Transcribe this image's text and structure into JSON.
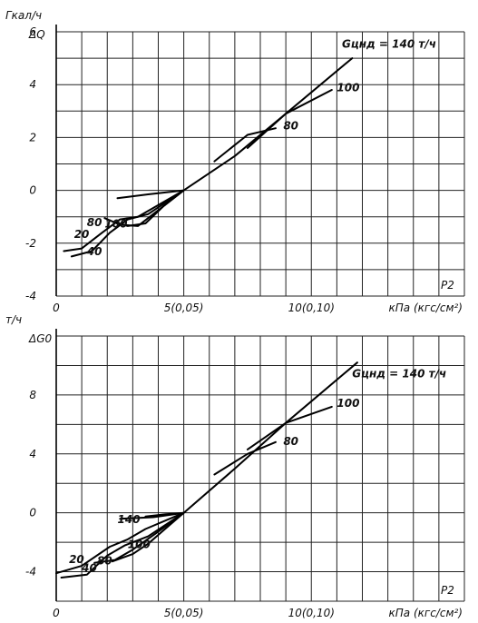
{
  "chart_data": [
    {
      "type": "line",
      "y_unit": "Гкал/ч",
      "y_symbol": "ΔQ",
      "x_symbol": "P2",
      "x_unit": "кПа (кгс/см²)",
      "x_tick_labels": [
        {
          "x": 0,
          "label": "0"
        },
        {
          "x": 5,
          "label": "5(0,05)"
        },
        {
          "x": 10,
          "label": "10(0,10)"
        }
      ],
      "y_ticks": [
        6,
        4,
        2,
        0,
        -2,
        -4
      ],
      "xlim": [
        0,
        16
      ],
      "ylim": [
        -4,
        6
      ],
      "grid": true,
      "series": [
        {
          "name": "Gцнд = 140 т/ч",
          "label_at": [
            11.2,
            5.4
          ],
          "points": [
            [
              2.4,
              -0.3
            ],
            [
              3.6,
              -0.15
            ],
            [
              5,
              0
            ],
            [
              7,
              1.3
            ],
            [
              9,
              2.9
            ],
            [
              11.6,
              5.0
            ]
          ]
        },
        {
          "name": "100",
          "label_at": [
            11.0,
            3.75
          ],
          "points": [
            [
              7.5,
              1.6
            ],
            [
              9,
              2.9
            ],
            [
              10.8,
              3.8
            ]
          ]
        },
        {
          "name": "80",
          "label_at": [
            8.9,
            2.3
          ],
          "points": [
            [
              6.2,
              1.1
            ],
            [
              7.5,
              2.1
            ],
            [
              8.6,
              2.35
            ]
          ]
        },
        {
          "name": "20",
          "label_at": [
            0.7,
            -1.8
          ],
          "points": [
            [
              0.3,
              -2.3
            ],
            [
              1,
              -2.2
            ],
            [
              1.8,
              -1.6
            ],
            [
              2.5,
              -1.1
            ],
            [
              3.2,
              -1.0
            ],
            [
              5,
              0
            ]
          ]
        },
        {
          "name": "40",
          "label_at": [
            1.2,
            -2.45
          ],
          "points": [
            [
              0.6,
              -2.5
            ],
            [
              1.4,
              -2.3
            ],
            [
              2.1,
              -1.6
            ],
            [
              2.8,
              -1.1
            ],
            [
              3.6,
              -0.9
            ],
            [
              5,
              0
            ]
          ]
        },
        {
          "name": "80",
          "label_at": [
            1.2,
            -1.35
          ],
          "points": [
            [
              1.9,
              -1.05
            ],
            [
              2.5,
              -1.3
            ],
            [
              3.2,
              -1.35
            ],
            [
              3.8,
              -0.9
            ],
            [
              5,
              0
            ]
          ]
        },
        {
          "name": "100",
          "label_at": [
            1.9,
            -1.4
          ],
          "points": [
            [
              2.3,
              -1.2
            ],
            [
              2.8,
              -1.35
            ],
            [
              3.5,
              -1.25
            ],
            [
              4.2,
              -0.6
            ],
            [
              5,
              0
            ]
          ]
        }
      ]
    },
    {
      "type": "line",
      "y_unit": "т/ч",
      "y_symbol": "ΔG0",
      "x_symbol": "P2",
      "x_unit": "кПа (кгс/см²)",
      "x_tick_labels": [
        {
          "x": 0,
          "label": "0"
        },
        {
          "x": 5,
          "label": "5(0,05)"
        },
        {
          "x": 10,
          "label": "10(0,10)"
        }
      ],
      "y_ticks": [
        8,
        4,
        0,
        -4
      ],
      "xlim": [
        0,
        16
      ],
      "ylim": [
        -6,
        12
      ],
      "grid": true,
      "series": [
        {
          "name": "Gцнд = 140 т/ч",
          "label_at": [
            11.6,
            9.2
          ],
          "points": [
            [
              2.5,
              -0.4
            ],
            [
              3.8,
              -0.3
            ],
            [
              5,
              0
            ],
            [
              7,
              3.0
            ],
            [
              9,
              6.1
            ],
            [
              11.8,
              10.2
            ]
          ]
        },
        {
          "name": "100",
          "label_at": [
            11.0,
            7.2
          ],
          "points": [
            [
              7.5,
              4.3
            ],
            [
              9,
              6.1
            ],
            [
              10.8,
              7.2
            ]
          ]
        },
        {
          "name": "80",
          "label_at": [
            8.9,
            4.6
          ],
          "points": [
            [
              6.2,
              2.6
            ],
            [
              7.5,
              4.0
            ],
            [
              8.6,
              4.8
            ]
          ]
        },
        {
          "name": "140",
          "label_at": [
            2.4,
            -0.7
          ],
          "points": [
            [
              3.5,
              -0.25
            ],
            [
              4.3,
              -0.1
            ],
            [
              5,
              0
            ]
          ]
        },
        {
          "name": "20",
          "label_at": [
            0.5,
            -3.4
          ],
          "points": [
            [
              0,
              -4.1
            ],
            [
              1,
              -3.6
            ],
            [
              2.1,
              -2.3
            ],
            [
              2.8,
              -1.8
            ],
            [
              3.5,
              -1.1
            ],
            [
              5,
              0
            ]
          ]
        },
        {
          "name": "40",
          "label_at": [
            1.0,
            -4.0
          ],
          "points": [
            [
              0.2,
              -4.4
            ],
            [
              1.2,
              -4.2
            ],
            [
              2.0,
              -2.9
            ],
            [
              2.7,
              -2.2
            ],
            [
              3.6,
              -1.6
            ],
            [
              5,
              0
            ]
          ]
        },
        {
          "name": "80",
          "label_at": [
            1.6,
            -3.5
          ],
          "points": [
            [
              1.5,
              -3.4
            ],
            [
              2.3,
              -3.2
            ],
            [
              3.0,
              -2.5
            ],
            [
              3.9,
              -1.4
            ],
            [
              5,
              0
            ]
          ]
        },
        {
          "name": "100",
          "label_at": [
            2.8,
            -2.4
          ],
          "points": [
            [
              2.2,
              -3.3
            ],
            [
              3.0,
              -2.8
            ],
            [
              3.6,
              -2.1
            ],
            [
              4.2,
              -1.2
            ],
            [
              5,
              0
            ]
          ]
        }
      ]
    }
  ]
}
